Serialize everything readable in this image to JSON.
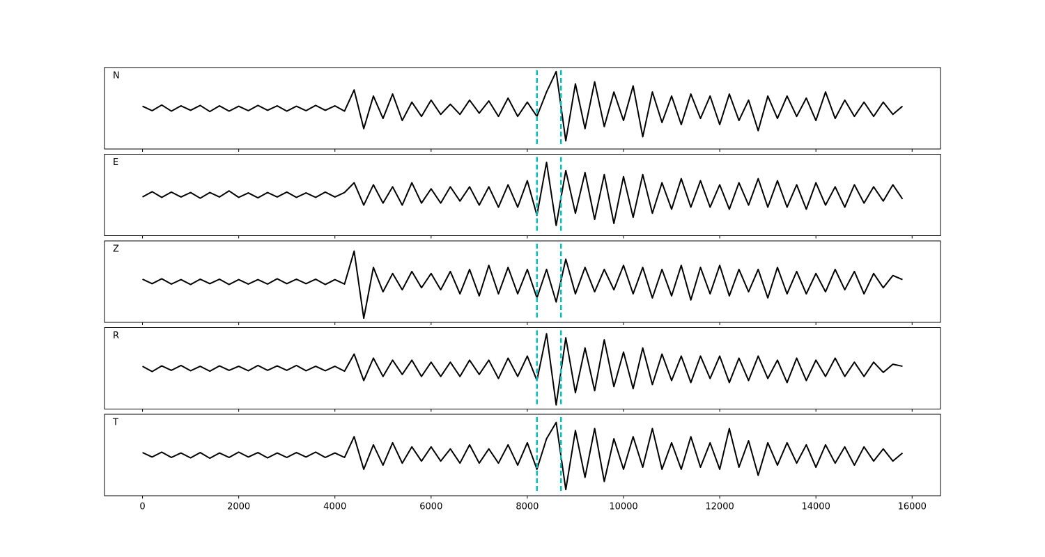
{
  "chart_data": {
    "type": "line",
    "x": [
      0,
      200,
      400,
      600,
      800,
      1000,
      1200,
      1400,
      1600,
      1800,
      2000,
      2200,
      2400,
      2600,
      2800,
      3000,
      3200,
      3400,
      3600,
      3800,
      4000,
      4200,
      4400,
      4600,
      4800,
      5000,
      5200,
      5400,
      5600,
      5800,
      6000,
      6200,
      6400,
      6600,
      6800,
      7000,
      7200,
      7400,
      7600,
      7800,
      8000,
      8200,
      8400,
      8600,
      8800,
      9000,
      9200,
      9400,
      9600,
      9800,
      10000,
      10200,
      10400,
      10600,
      10800,
      11000,
      11200,
      11400,
      11600,
      11800,
      12000,
      12200,
      12400,
      12600,
      12800,
      13000,
      13200,
      13400,
      13600,
      13800,
      14000,
      14200,
      14400,
      14600,
      14800,
      15000,
      15200,
      15400,
      15600,
      15800
    ],
    "xlim": [
      -790,
      16590
    ],
    "xticks": [
      0,
      2000,
      4000,
      6000,
      8000,
      10000,
      12000,
      14000,
      16000
    ],
    "ylim": [
      -1,
      1
    ],
    "markers": [
      8200,
      8700
    ],
    "marker_color": "#00bfbf",
    "series": [
      {
        "name": "N",
        "color": "#000000",
        "values": [
          0.05,
          -0.06,
          0.08,
          -0.07,
          0.06,
          -0.05,
          0.07,
          -0.08,
          0.06,
          -0.07,
          0.05,
          -0.06,
          0.07,
          -0.05,
          0.06,
          -0.07,
          0.05,
          -0.06,
          0.07,
          -0.05,
          0.06,
          -0.07,
          0.45,
          -0.5,
          0.3,
          -0.25,
          0.35,
          -0.3,
          0.15,
          -0.2,
          0.2,
          -0.15,
          0.1,
          -0.15,
          0.2,
          -0.12,
          0.18,
          -0.2,
          0.25,
          -0.2,
          0.15,
          -0.2,
          0.4,
          0.9,
          -0.8,
          0.6,
          -0.5,
          0.65,
          -0.45,
          0.4,
          -0.3,
          0.55,
          -0.7,
          0.4,
          -0.35,
          0.3,
          -0.4,
          0.35,
          -0.25,
          0.3,
          -0.4,
          0.35,
          -0.3,
          0.2,
          -0.55,
          0.3,
          -0.25,
          0.3,
          -0.2,
          0.25,
          -0.3,
          0.4,
          -0.25,
          0.2,
          -0.2,
          0.15,
          -0.2,
          0.15,
          -0.15,
          0.05
        ]
      },
      {
        "name": "E",
        "color": "#000000",
        "values": [
          -0.05,
          0.08,
          -0.06,
          0.07,
          -0.05,
          0.06,
          -0.08,
          0.06,
          -0.05,
          0.1,
          -0.06,
          0.05,
          -0.07,
          0.06,
          -0.05,
          0.07,
          -0.06,
          0.05,
          -0.06,
          0.07,
          -0.05,
          0.06,
          0.3,
          -0.25,
          0.25,
          -0.2,
          0.2,
          -0.25,
          0.3,
          -0.2,
          0.15,
          -0.2,
          0.2,
          -0.15,
          0.2,
          -0.25,
          0.2,
          -0.3,
          0.25,
          -0.3,
          0.35,
          -0.5,
          0.8,
          -0.75,
          0.6,
          -0.45,
          0.55,
          -0.6,
          0.5,
          -0.7,
          0.45,
          -0.55,
          0.5,
          -0.45,
          0.3,
          -0.35,
          0.4,
          -0.3,
          0.35,
          -0.3,
          0.25,
          -0.35,
          0.3,
          -0.25,
          0.4,
          -0.3,
          0.35,
          -0.3,
          0.25,
          -0.35,
          0.3,
          -0.25,
          0.2,
          -0.3,
          0.25,
          -0.2,
          0.2,
          -0.15,
          0.25,
          -0.1
        ]
      },
      {
        "name": "Z",
        "color": "#000000",
        "values": [
          0.06,
          -0.05,
          0.07,
          -0.06,
          0.05,
          -0.07,
          0.06,
          -0.05,
          0.06,
          -0.07,
          0.05,
          -0.06,
          0.05,
          -0.06,
          0.07,
          -0.05,
          0.06,
          -0.05,
          0.06,
          -0.07,
          0.05,
          -0.06,
          0.75,
          -0.9,
          0.35,
          -0.25,
          0.2,
          -0.2,
          0.25,
          -0.15,
          0.2,
          -0.2,
          0.25,
          -0.3,
          0.3,
          -0.35,
          0.4,
          -0.3,
          0.35,
          -0.3,
          0.3,
          -0.4,
          0.3,
          -0.5,
          0.55,
          -0.3,
          0.35,
          -0.25,
          0.3,
          -0.2,
          0.4,
          -0.3,
          0.35,
          -0.4,
          0.3,
          -0.35,
          0.4,
          -0.45,
          0.35,
          -0.3,
          0.4,
          -0.35,
          0.3,
          -0.25,
          0.3,
          -0.4,
          0.35,
          -0.3,
          0.25,
          -0.3,
          0.2,
          -0.25,
          0.3,
          -0.2,
          0.25,
          -0.3,
          0.2,
          -0.15,
          0.15,
          0.05
        ]
      },
      {
        "name": "R",
        "color": "#000000",
        "values": [
          0.05,
          -0.08,
          0.06,
          -0.05,
          0.07,
          -0.06,
          0.05,
          -0.07,
          0.06,
          -0.05,
          0.05,
          -0.06,
          0.07,
          -0.05,
          0.06,
          -0.05,
          0.07,
          -0.06,
          0.05,
          -0.06,
          0.05,
          -0.07,
          0.35,
          -0.3,
          0.25,
          -0.2,
          0.2,
          -0.15,
          0.2,
          -0.2,
          0.15,
          -0.2,
          0.15,
          -0.2,
          0.2,
          -0.15,
          0.2,
          -0.25,
          0.25,
          -0.2,
          0.3,
          -0.3,
          0.85,
          -0.9,
          0.75,
          -0.6,
          0.5,
          -0.55,
          0.7,
          -0.45,
          0.4,
          -0.5,
          0.5,
          -0.4,
          0.35,
          -0.3,
          0.3,
          -0.35,
          0.3,
          -0.25,
          0.3,
          -0.35,
          0.25,
          -0.3,
          0.3,
          -0.25,
          0.2,
          -0.35,
          0.25,
          -0.3,
          0.2,
          -0.2,
          0.25,
          -0.2,
          0.15,
          -0.2,
          0.15,
          -0.1,
          0.1,
          0.05
        ]
      },
      {
        "name": "T",
        "color": "#000000",
        "values": [
          0.06,
          -0.05,
          0.07,
          -0.06,
          0.05,
          -0.07,
          0.06,
          -0.08,
          0.05,
          -0.06,
          0.07,
          -0.05,
          0.06,
          -0.07,
          0.05,
          -0.06,
          0.06,
          -0.05,
          0.07,
          -0.06,
          0.05,
          -0.06,
          0.45,
          -0.35,
          0.25,
          -0.25,
          0.3,
          -0.2,
          0.2,
          -0.15,
          0.2,
          -0.15,
          0.15,
          -0.2,
          0.25,
          -0.2,
          0.15,
          -0.2,
          0.25,
          -0.25,
          0.3,
          -0.35,
          0.4,
          0.8,
          -0.85,
          0.6,
          -0.55,
          0.65,
          -0.65,
          0.4,
          -0.35,
          0.45,
          -0.3,
          0.65,
          -0.35,
          0.3,
          -0.35,
          0.45,
          -0.3,
          0.3,
          -0.35,
          0.65,
          -0.3,
          0.35,
          -0.5,
          0.3,
          -0.25,
          0.3,
          -0.2,
          0.25,
          -0.3,
          0.25,
          -0.2,
          0.2,
          -0.25,
          0.2,
          -0.15,
          0.15,
          -0.15,
          0.05
        ]
      }
    ]
  }
}
